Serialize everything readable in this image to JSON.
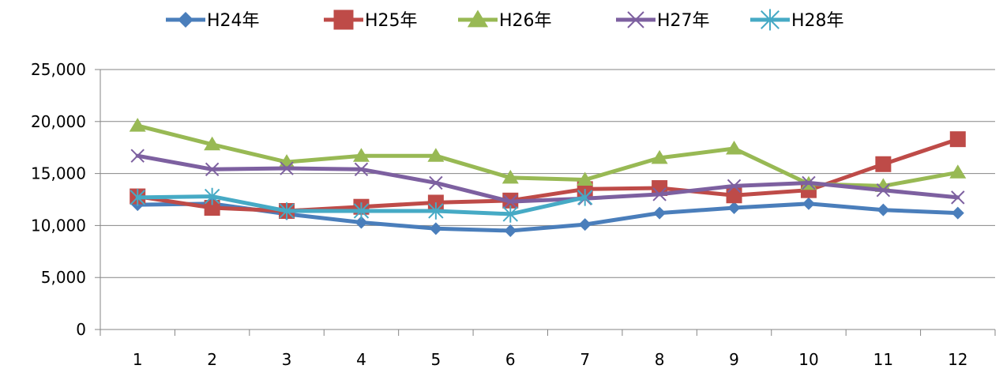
{
  "chart_data": {
    "type": "line",
    "title": "",
    "xlabel": "",
    "ylabel": "",
    "categories": [
      "1",
      "2",
      "3",
      "4",
      "5",
      "6",
      "7",
      "8",
      "9",
      "10",
      "11",
      "12"
    ],
    "ylim": [
      0,
      25000
    ],
    "yticks": [
      0,
      5000,
      10000,
      15000,
      20000,
      25000
    ],
    "ytick_labels": [
      "0",
      "5,000",
      "10,000",
      "15,000",
      "20,000",
      "25,000"
    ],
    "grid": "horizontal",
    "legend": "top",
    "series": [
      {
        "name": "H24年",
        "color": "#4a7ebb",
        "marker": "diamond",
        "values": [
          12000,
          12100,
          11100,
          10300,
          9700,
          9500,
          10100,
          11200,
          11700,
          12100,
          11500,
          11200
        ]
      },
      {
        "name": "H25年",
        "color": "#be4b48",
        "marker": "square",
        "values": [
          12800,
          11700,
          11400,
          11800,
          12200,
          12400,
          13500,
          13600,
          12900,
          13400,
          15900,
          18300
        ]
      },
      {
        "name": "H26年",
        "color": "#98b954",
        "marker": "triangle",
        "values": [
          19600,
          17800,
          16100,
          16700,
          16700,
          14600,
          14400,
          16500,
          17400,
          14000,
          13800,
          15100
        ]
      },
      {
        "name": "H27年",
        "color": "#7d60a0",
        "marker": "x",
        "values": [
          16700,
          15400,
          15500,
          15400,
          14100,
          12300,
          12600,
          13000,
          13800,
          14100,
          13400,
          12700
        ]
      },
      {
        "name": "H28年",
        "color": "#46aac5",
        "marker": "asterisk",
        "values": [
          12700,
          12800,
          11400,
          11400,
          11400,
          11100,
          12700,
          null,
          null,
          null,
          null,
          null
        ]
      }
    ]
  }
}
